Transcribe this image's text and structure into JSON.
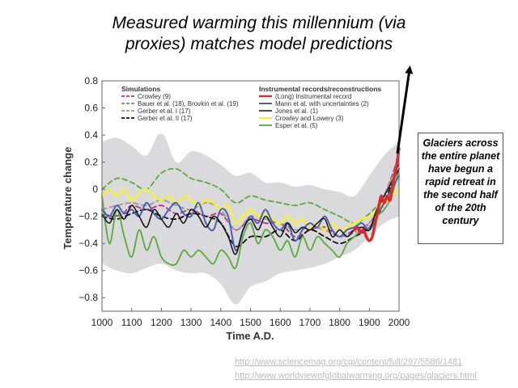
{
  "slide": {
    "title_line1": "Measured warming this millennium (via",
    "title_line2": "proxies) matches model predictions",
    "callout_text": "Glaciers across the entire planet have begun a rapid retreat in the second half of the 20th century",
    "urls": [
      "http://www.sciencemag.org/cgi/content/full/297/5586/1481",
      "http://www.worldviewofglobalwarming.org/pages/glaciers.html"
    ]
  },
  "chart_data": {
    "type": "line",
    "title": "",
    "xlabel": "Time A.D.",
    "ylabel": "Temperature change",
    "xlim": [
      1000,
      2000
    ],
    "ylim": [
      -0.9,
      0.8
    ],
    "x_ticks": [
      1000,
      1100,
      1200,
      1300,
      1400,
      1500,
      1600,
      1700,
      1800,
      1900,
      2000
    ],
    "y_ticks": [
      0.8,
      0.6,
      0.4,
      0.2,
      0,
      -0.2,
      -0.4,
      -0.6,
      -0.8
    ],
    "y_tick_labels": [
      "0.8",
      "0.6",
      "0.4",
      "0.2",
      "0",
      "−0.2",
      "−0.4",
      "−0.6",
      "−0.8"
    ],
    "grid": false,
    "legend": {
      "groups": [
        {
          "heading": "Simulations",
          "entries": [
            {
              "label": "Crowley (9)",
              "series": "Crowley"
            },
            {
              "label": "Bauer et al. (18), Brovkin et al. (19)",
              "series": "Bauer/Brovkin"
            },
            {
              "label": "Gerber et al. I (17)",
              "series": "Gerber I"
            },
            {
              "label": "Gerber et al. II (17)",
              "series": "Gerber II"
            }
          ]
        },
        {
          "heading": "Instrumental records/reconstructions",
          "entries": [
            {
              "label": "(Long) Instrumental record",
              "series": "Instrumental"
            },
            {
              "label": "Mann et al. with uncertainties (2)",
              "series": "Mann"
            },
            {
              "label": "Jones et al. (1)",
              "series": "Jones"
            },
            {
              "label": "Crowley and Lowery (3)",
              "series": "Crowley and Lowery"
            },
            {
              "label": "Esper et al. (5)",
              "series": "Esper"
            }
          ]
        }
      ]
    },
    "uncertainty_band": {
      "x": [
        1000,
        1050,
        1100,
        1150,
        1200,
        1250,
        1300,
        1350,
        1400,
        1450,
        1500,
        1550,
        1600,
        1650,
        1700,
        1750,
        1800,
        1850,
        1900,
        1950,
        2000
      ],
      "upper": [
        0.35,
        0.38,
        0.32,
        0.25,
        0.42,
        0.2,
        0.28,
        0.25,
        0.18,
        0.1,
        0.12,
        0.05,
        0.05,
        0.02,
        0.03,
        0.0,
        -0.02,
        -0.05,
        0.1,
        0.25,
        0.35
      ],
      "lower": [
        -0.55,
        -0.6,
        -0.62,
        -0.58,
        -0.55,
        -0.6,
        -0.62,
        -0.62,
        -0.7,
        -0.85,
        -0.72,
        -0.68,
        -0.62,
        -0.6,
        -0.58,
        -0.55,
        -0.5,
        -0.45,
        -0.35,
        -0.25,
        -0.2
      ]
    },
    "series": [
      {
        "name": "Crowley",
        "color": "#c0307f",
        "dash": "6,4",
        "width": 1.8,
        "x": [
          1000,
          1030,
          1070,
          1100,
          1150,
          1200,
          1250,
          1300,
          1350,
          1400,
          1450,
          1500,
          1550,
          1600,
          1650,
          1700,
          1750,
          1800,
          1850,
          1900,
          1950,
          2000
        ],
        "y": [
          -0.15,
          -0.2,
          -0.18,
          -0.12,
          -0.15,
          -0.12,
          -0.18,
          -0.15,
          -0.2,
          -0.18,
          -0.3,
          -0.22,
          -0.25,
          -0.25,
          -0.35,
          -0.3,
          -0.28,
          -0.35,
          -0.3,
          -0.25,
          -0.05,
          0.25
        ]
      },
      {
        "name": "Bauer/Brovkin",
        "color": "#5aaa3a",
        "dash": "6,4",
        "width": 1.8,
        "x": [
          1000,
          1050,
          1100,
          1150,
          1200,
          1250,
          1300,
          1350,
          1400,
          1450,
          1500,
          1550,
          1600,
          1650,
          1700,
          1750,
          1800,
          1850,
          1900,
          1950,
          2000
        ],
        "y": [
          0.0,
          0.08,
          0.05,
          0.0,
          0.12,
          0.15,
          0.08,
          0.05,
          0.0,
          -0.1,
          -0.05,
          -0.08,
          -0.1,
          -0.12,
          -0.1,
          -0.15,
          -0.2,
          -0.25,
          -0.18,
          -0.05,
          0.2
        ]
      },
      {
        "name": "Gerber I",
        "color": "#999999",
        "dash": "6,4",
        "width": 1.8,
        "x": [
          1000,
          1050,
          1100,
          1150,
          1200,
          1250,
          1300,
          1350,
          1400,
          1450,
          1500,
          1550,
          1600,
          1650,
          1700,
          1750,
          1800,
          1850,
          1900,
          1950,
          2000
        ],
        "y": [
          -0.15,
          -0.12,
          -0.1,
          -0.12,
          -0.08,
          -0.12,
          -0.15,
          -0.1,
          -0.15,
          -0.3,
          -0.2,
          -0.22,
          -0.25,
          -0.3,
          -0.28,
          -0.3,
          -0.35,
          -0.32,
          -0.25,
          -0.05,
          0.22
        ]
      },
      {
        "name": "Gerber II",
        "color": "#111111",
        "dash": "6,4",
        "width": 1.8,
        "x": [
          1000,
          1050,
          1100,
          1150,
          1200,
          1250,
          1300,
          1350,
          1400,
          1450,
          1500,
          1550,
          1600,
          1650,
          1700,
          1750,
          1800,
          1850,
          1900,
          1950,
          2000
        ],
        "y": [
          -0.2,
          -0.22,
          -0.18,
          -0.15,
          -0.2,
          -0.22,
          -0.18,
          -0.2,
          -0.25,
          -0.42,
          -0.35,
          -0.35,
          -0.3,
          -0.38,
          -0.3,
          -0.35,
          -0.4,
          -0.35,
          -0.28,
          -0.1,
          0.2
        ]
      },
      {
        "name": "Esper",
        "color": "#5aaa3a",
        "dash": "",
        "width": 1.8,
        "x": [
          1000,
          1025,
          1050,
          1075,
          1100,
          1125,
          1150,
          1175,
          1200,
          1225,
          1250,
          1275,
          1300,
          1325,
          1350,
          1375,
          1400,
          1425,
          1450,
          1475,
          1500,
          1525,
          1550,
          1575,
          1600,
          1625,
          1650,
          1675,
          1700,
          1725,
          1750,
          1775,
          1800,
          1825,
          1850,
          1875,
          1900,
          1925,
          1950,
          1975,
          2000
        ],
        "y": [
          -0.05,
          -0.4,
          -0.15,
          -0.35,
          -0.5,
          -0.3,
          -0.45,
          -0.35,
          -0.5,
          -0.55,
          -0.55,
          -0.45,
          -0.5,
          -0.45,
          -0.5,
          -0.55,
          -0.45,
          -0.5,
          -0.58,
          -0.35,
          -0.25,
          -0.4,
          -0.3,
          -0.35,
          -0.45,
          -0.38,
          -0.5,
          -0.35,
          -0.45,
          -0.35,
          -0.4,
          -0.45,
          -0.5,
          -0.4,
          -0.35,
          -0.3,
          -0.28,
          -0.2,
          -0.15,
          -0.05,
          0.15
        ]
      },
      {
        "name": "Crowley and Lowery",
        "color": "#f5ee3a",
        "dash": "",
        "width": 2.6,
        "x": [
          1000,
          1025,
          1050,
          1075,
          1100,
          1125,
          1150,
          1175,
          1200,
          1225,
          1250,
          1275,
          1300,
          1325,
          1350,
          1375,
          1400,
          1425,
          1450,
          1475,
          1500,
          1525,
          1550,
          1575,
          1600,
          1625,
          1650,
          1675,
          1700,
          1725,
          1750,
          1775,
          1800,
          1825,
          1850,
          1875,
          1900,
          1925,
          1950,
          1975,
          2000
        ],
        "y": [
          -0.05,
          0.0,
          -0.05,
          0.0,
          -0.08,
          -0.03,
          0.0,
          -0.05,
          -0.08,
          -0.05,
          -0.1,
          -0.05,
          -0.08,
          -0.12,
          -0.08,
          -0.1,
          -0.15,
          -0.12,
          -0.25,
          -0.2,
          -0.15,
          -0.2,
          -0.18,
          -0.22,
          -0.25,
          -0.2,
          -0.25,
          -0.22,
          -0.28,
          -0.25,
          -0.3,
          -0.25,
          -0.3,
          -0.28,
          -0.25,
          -0.22,
          -0.2,
          -0.15,
          -0.1,
          -0.05,
          0.0
        ]
      },
      {
        "name": "Mann",
        "color": "#4a5fb8",
        "dash": "",
        "width": 2.0,
        "x": [
          1000,
          1025,
          1050,
          1075,
          1100,
          1125,
          1150,
          1175,
          1200,
          1225,
          1250,
          1275,
          1300,
          1325,
          1350,
          1375,
          1400,
          1425,
          1450,
          1475,
          1500,
          1525,
          1550,
          1575,
          1600,
          1625,
          1650,
          1675,
          1700,
          1725,
          1750,
          1775,
          1800,
          1825,
          1850,
          1875,
          1900,
          1925,
          1950,
          1975,
          2000
        ],
        "y": [
          -0.15,
          -0.2,
          -0.12,
          -0.18,
          -0.15,
          -0.2,
          -0.1,
          -0.18,
          -0.22,
          -0.15,
          -0.1,
          -0.18,
          -0.2,
          -0.1,
          -0.25,
          -0.3,
          -0.15,
          -0.2,
          -0.45,
          -0.3,
          -0.2,
          -0.25,
          -0.15,
          -0.25,
          -0.3,
          -0.25,
          -0.38,
          -0.3,
          -0.25,
          -0.28,
          -0.2,
          -0.3,
          -0.35,
          -0.3,
          -0.28,
          -0.25,
          -0.3,
          -0.2,
          -0.1,
          0.0,
          0.1
        ]
      },
      {
        "name": "Jones",
        "color": "#111111",
        "dash": "",
        "width": 1.5,
        "x": [
          1000,
          1025,
          1050,
          1075,
          1100,
          1125,
          1150,
          1175,
          1200,
          1225,
          1250,
          1275,
          1300,
          1325,
          1350,
          1375,
          1400,
          1425,
          1450,
          1475,
          1500,
          1525,
          1550,
          1575,
          1600,
          1625,
          1650,
          1675,
          1700,
          1725,
          1750,
          1775,
          1800,
          1825,
          1850,
          1875,
          1900,
          1925,
          1950,
          1975,
          2000
        ],
        "y": [
          -0.18,
          -0.25,
          -0.15,
          -0.22,
          -0.12,
          -0.2,
          -0.28,
          -0.15,
          -0.22,
          -0.28,
          -0.18,
          -0.25,
          -0.15,
          -0.2,
          -0.28,
          -0.2,
          -0.25,
          -0.35,
          -0.48,
          -0.3,
          -0.22,
          -0.3,
          -0.2,
          -0.28,
          -0.35,
          -0.25,
          -0.32,
          -0.28,
          -0.3,
          -0.25,
          -0.22,
          -0.35,
          -0.3,
          -0.35,
          -0.3,
          -0.28,
          -0.3,
          -0.15,
          -0.05,
          0.05,
          0.15
        ]
      },
      {
        "name": "Instrumental",
        "color": "#dd2a2a",
        "dash": "",
        "width": 3.5,
        "x": [
          1850,
          1860,
          1870,
          1880,
          1890,
          1900,
          1910,
          1920,
          1930,
          1940,
          1950,
          1960,
          1970,
          1980,
          1990,
          2000
        ],
        "y": [
          -0.3,
          -0.28,
          -0.32,
          -0.3,
          -0.35,
          -0.38,
          -0.35,
          -0.25,
          -0.15,
          -0.05,
          -0.1,
          -0.05,
          -0.08,
          0.05,
          0.15,
          0.3
        ]
      }
    ]
  }
}
